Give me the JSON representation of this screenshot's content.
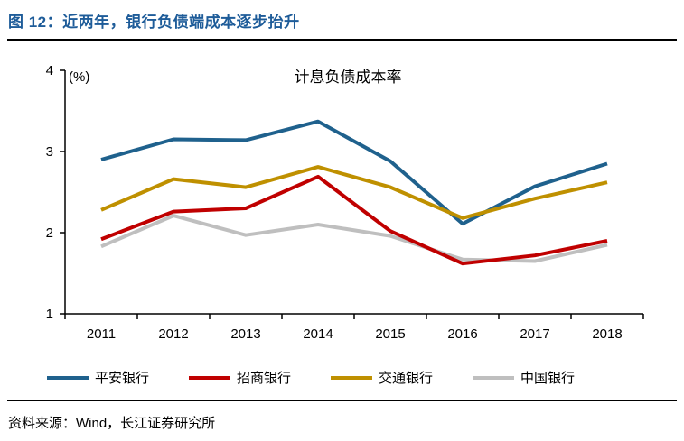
{
  "figure": {
    "title": "图 12：近两年，银行负债端成本逐步抬升",
    "title_color": "#1E5C99",
    "source": "资料来源：Wind，长江证券研究所"
  },
  "chart_data": {
    "type": "line",
    "title": "计息负债成本率",
    "unit_label": "(%)",
    "xlabel": "",
    "ylabel": "",
    "categories": [
      "2011",
      "2012",
      "2013",
      "2014",
      "2015",
      "2016",
      "2017",
      "2018"
    ],
    "series": [
      {
        "name": "平安银行",
        "color": "#1F618D",
        "values": [
          2.9,
          3.15,
          3.14,
          3.37,
          2.88,
          2.11,
          2.57,
          2.85
        ]
      },
      {
        "name": "招商银行",
        "color": "#C00000",
        "values": [
          1.92,
          2.26,
          2.3,
          2.69,
          2.02,
          1.62,
          1.72,
          1.9
        ]
      },
      {
        "name": "交通银行",
        "color": "#BF9000",
        "values": [
          2.28,
          2.66,
          2.56,
          2.81,
          2.56,
          2.18,
          2.42,
          2.62
        ]
      },
      {
        "name": "中国银行",
        "color": "#BFBFBF",
        "values": [
          1.83,
          2.21,
          1.97,
          2.1,
          1.96,
          1.67,
          1.65,
          1.85
        ]
      }
    ],
    "ylim": [
      1,
      4
    ],
    "yticks": [
      1,
      2,
      3,
      4
    ],
    "grid": false,
    "legend_position": "bottom",
    "axis_color": "#000000",
    "line_width": 4
  }
}
